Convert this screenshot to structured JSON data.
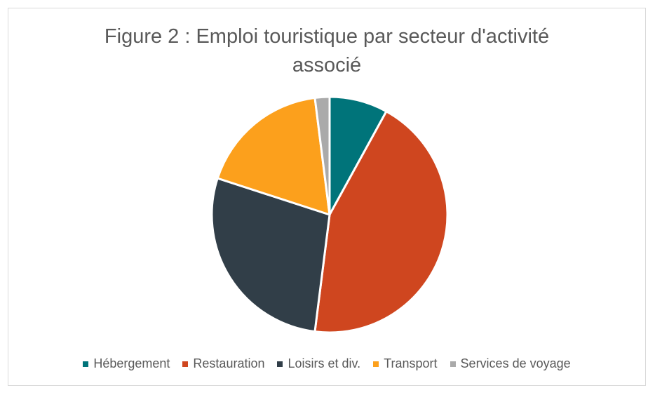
{
  "chart_data": {
    "type": "pie",
    "title": "Figure 2 : Emploi touristique par secteur d'activité associé",
    "title_lines": [
      "Figure 2 : Emploi touristique par secteur d'activité",
      "associé"
    ],
    "categories": [
      "Hébergement",
      "Restauration",
      "Loisirs et div.",
      "Transport",
      "Services de voyage"
    ],
    "values": [
      8,
      44,
      28,
      18,
      2
    ],
    "colors": [
      "#00747a",
      "#cf461f",
      "#313e48",
      "#fca01c",
      "#aaaaaa"
    ],
    "legend_position": "bottom",
    "start": "top",
    "direction": "clockwise"
  }
}
